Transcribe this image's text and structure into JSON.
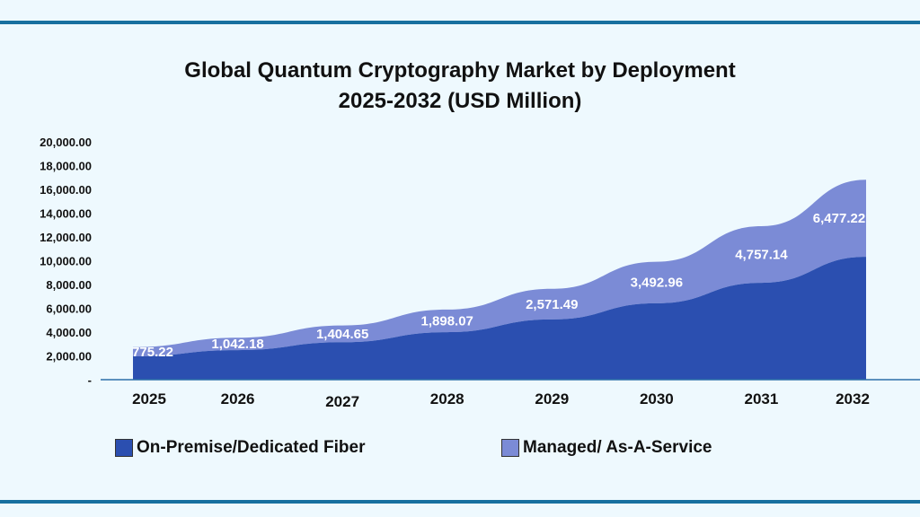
{
  "chart_data": {
    "type": "area",
    "stacked": true,
    "title": "Global Quantum Cryptography Market by Deployment",
    "subtitle": "2025-2032 (USD Million)",
    "categories": [
      "2025",
      "2026",
      "2027",
      "2028",
      "2029",
      "2030",
      "2031",
      "2032"
    ],
    "yticks": [
      "-",
      "2,000.00",
      "4,000.00",
      "6,000.00",
      "8,000.00",
      "10,000.00",
      "12,000.00",
      "14,000.00",
      "16,000.00",
      "18,000.00",
      "20,000.00"
    ],
    "ylim": [
      0,
      20000
    ],
    "grid": false,
    "legend_position": "bottom",
    "series": [
      {
        "name": "On-Premise/Dedicated Fiber",
        "color": "#2b4fb0",
        "values": [
          1960,
          2485,
          3150,
          3995,
          5066,
          6424,
          8146,
          10330
        ]
      },
      {
        "name": "Managed/ As-A-Service",
        "color": "#7b8bd6",
        "values": [
          775.22,
          1042.18,
          1404.65,
          1898.07,
          2571.49,
          3492.96,
          4757.14,
          6477.22
        ],
        "labels": [
          "775.22",
          "1,042.18",
          "1,404.65",
          "1,898.07",
          "2,571.49",
          "3,492.96",
          "4,757.14",
          "6,477.22"
        ]
      }
    ]
  }
}
